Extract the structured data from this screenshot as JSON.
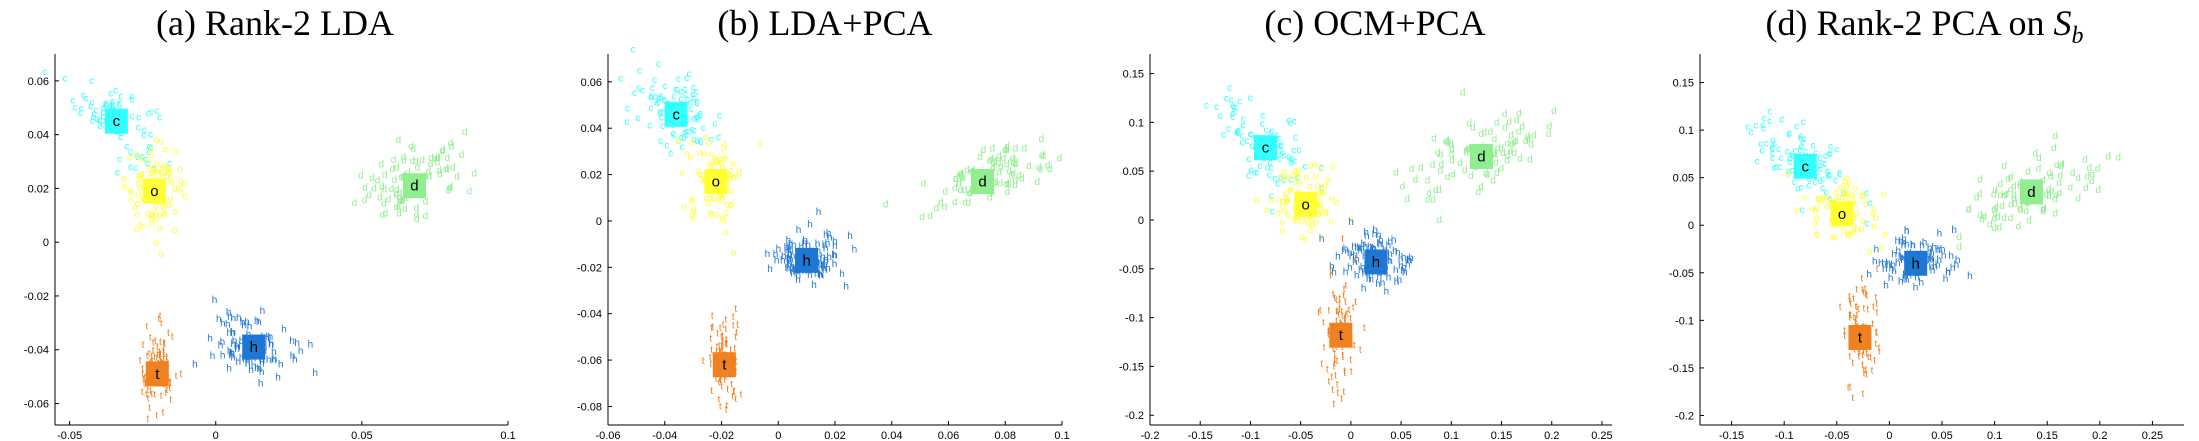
{
  "figure": {
    "panels": [
      {
        "title_main": "(a) Rank-2 LDA",
        "title_var": "",
        "title_sub": ""
      },
      {
        "title_main": "(b) LDA+PCA",
        "title_var": "",
        "title_sub": ""
      },
      {
        "title_main": "(c) OCM+PCA",
        "title_var": "",
        "title_sub": ""
      },
      {
        "title_main": "(d) Rank-2 PCA on ",
        "title_var": "S",
        "title_sub": "b"
      }
    ]
  },
  "chart_data": [
    {
      "type": "scatter",
      "title": "(a) Rank-2 LDA",
      "xlim": [
        -0.055,
        0.1
      ],
      "ylim": [
        -0.068,
        0.07
      ],
      "xticks": [
        -0.05,
        0,
        0.05,
        0.1
      ],
      "xtick_labels": [
        "-0.05",
        "0",
        "0.05",
        "0.1"
      ],
      "yticks": [
        -0.06,
        -0.04,
        -0.02,
        0,
        0.02,
        0.04,
        0.06
      ],
      "ytick_labels": [
        "-0.06",
        "-0.04",
        "-0.02",
        "0",
        "0.02",
        "0.04",
        "0.06"
      ],
      "grid": false,
      "series": [
        {
          "name": "c",
          "color": "#33ffff",
          "centroid": [
            -0.034,
            0.045
          ],
          "spread": [
            0.007,
            0.007
          ]
        },
        {
          "name": "o",
          "color": "#ffff33",
          "centroid": [
            -0.021,
            0.019
          ],
          "spread": [
            0.005,
            0.008
          ]
        },
        {
          "name": "d",
          "color": "#90ee90",
          "centroid": [
            0.068,
            0.021
          ],
          "spread": [
            0.01,
            0.006
          ]
        },
        {
          "name": "h",
          "color": "#1f77d4",
          "centroid": [
            0.013,
            -0.039
          ],
          "spread": [
            0.007,
            0.006
          ]
        },
        {
          "name": "t",
          "color": "#f08020",
          "centroid": [
            -0.02,
            -0.049
          ],
          "spread": [
            0.003,
            0.008
          ]
        }
      ]
    },
    {
      "type": "scatter",
      "title": "(b) LDA+PCA",
      "xlim": [
        -0.06,
        0.1
      ],
      "ylim": [
        -0.088,
        0.072
      ],
      "xticks": [
        -0.06,
        -0.04,
        -0.02,
        0,
        0.02,
        0.04,
        0.06,
        0.08,
        0.1
      ],
      "xtick_labels": [
        "-0.06",
        "-0.04",
        "-0.02",
        "0",
        "0.02",
        "0.04",
        "0.06",
        "0.08",
        "0.1"
      ],
      "yticks": [
        -0.08,
        -0.06,
        -0.04,
        -0.02,
        0,
        0.02,
        0.04,
        0.06
      ],
      "ytick_labels": [
        "-0.08",
        "-0.06",
        "-0.04",
        "-0.02",
        "0",
        "0.02",
        "0.04",
        "0.06"
      ],
      "grid": false,
      "series": [
        {
          "name": "c",
          "color": "#33ffff",
          "centroid": [
            -0.036,
            0.046
          ],
          "spread": [
            0.008,
            0.008
          ]
        },
        {
          "name": "o",
          "color": "#ffff33",
          "centroid": [
            -0.022,
            0.017
          ],
          "spread": [
            0.005,
            0.009
          ]
        },
        {
          "name": "d",
          "color": "#90ee90",
          "centroid": [
            0.072,
            0.017
          ],
          "spread": [
            0.011,
            0.006
          ]
        },
        {
          "name": "h",
          "color": "#1f77d4",
          "centroid": [
            0.01,
            -0.017
          ],
          "spread": [
            0.007,
            0.006
          ]
        },
        {
          "name": "t",
          "color": "#f08020",
          "centroid": [
            -0.019,
            -0.062
          ],
          "spread": [
            0.003,
            0.009
          ]
        }
      ]
    },
    {
      "type": "scatter",
      "title": "(c) OCM+PCA",
      "xlim": [
        -0.2,
        0.26
      ],
      "ylim": [
        -0.21,
        0.17
      ],
      "xticks": [
        -0.2,
        -0.15,
        -0.1,
        -0.05,
        0,
        0.05,
        0.1,
        0.15,
        0.2,
        0.25
      ],
      "xtick_labels": [
        "-0.2",
        "-0.15",
        "-0.1",
        "-0.05",
        "0",
        "0.05",
        "0.1",
        "0.15",
        "0.2",
        "0.25"
      ],
      "yticks": [
        -0.2,
        -0.15,
        -0.1,
        -0.05,
        0,
        0.05,
        0.1,
        0.15
      ],
      "ytick_labels": [
        "-0.2",
        "-0.15",
        "-0.1",
        "-0.05",
        "0",
        "0.05",
        "0.1",
        "0.15"
      ],
      "grid": false,
      "series": [
        {
          "name": "c",
          "color": "#33ffff",
          "centroid": [
            -0.085,
            0.074
          ],
          "spread": [
            0.025,
            0.02
          ]
        },
        {
          "name": "o",
          "color": "#ffff33",
          "centroid": [
            -0.045,
            0.016
          ],
          "spread": [
            0.018,
            0.018
          ]
        },
        {
          "name": "d",
          "color": "#90ee90",
          "centroid": [
            0.13,
            0.065
          ],
          "spread": [
            0.035,
            0.02
          ]
        },
        {
          "name": "h",
          "color": "#1f77d4",
          "centroid": [
            0.025,
            -0.043
          ],
          "spread": [
            0.02,
            0.015
          ]
        },
        {
          "name": "t",
          "color": "#f08020",
          "centroid": [
            -0.01,
            -0.118
          ],
          "spread": [
            0.008,
            0.03
          ]
        }
      ]
    },
    {
      "type": "scatter",
      "title": "(d) Rank-2 PCA on S_b",
      "xlim": [
        -0.18,
        0.28
      ],
      "ylim": [
        -0.21,
        0.18
      ],
      "xticks": [
        -0.15,
        -0.1,
        -0.05,
        0,
        0.05,
        0.1,
        0.15,
        0.2,
        0.25
      ],
      "xtick_labels": [
        "-0.15",
        "-0.1",
        "-0.05",
        "0",
        "0.05",
        "0.1",
        "0.15",
        "0.2",
        "0.25"
      ],
      "yticks": [
        -0.2,
        -0.15,
        -0.1,
        -0.05,
        0,
        0.05,
        0.1,
        0.15
      ],
      "ytick_labels": [
        "-0.2",
        "-0.15",
        "-0.1",
        "-0.05",
        "0",
        "0.05",
        "0.1",
        "0.15"
      ],
      "grid": false,
      "series": [
        {
          "name": "c",
          "color": "#33ffff",
          "centroid": [
            -0.08,
            0.062
          ],
          "spread": [
            0.025,
            0.02
          ]
        },
        {
          "name": "o",
          "color": "#ffff33",
          "centroid": [
            -0.045,
            0.012
          ],
          "spread": [
            0.018,
            0.018
          ]
        },
        {
          "name": "d",
          "color": "#90ee90",
          "centroid": [
            0.135,
            0.035
          ],
          "spread": [
            0.04,
            0.018
          ]
        },
        {
          "name": "h",
          "color": "#1f77d4",
          "centroid": [
            0.025,
            -0.04
          ],
          "spread": [
            0.02,
            0.015
          ]
        },
        {
          "name": "t",
          "color": "#f08020",
          "centroid": [
            -0.028,
            -0.118
          ],
          "spread": [
            0.008,
            0.03
          ]
        }
      ]
    }
  ]
}
